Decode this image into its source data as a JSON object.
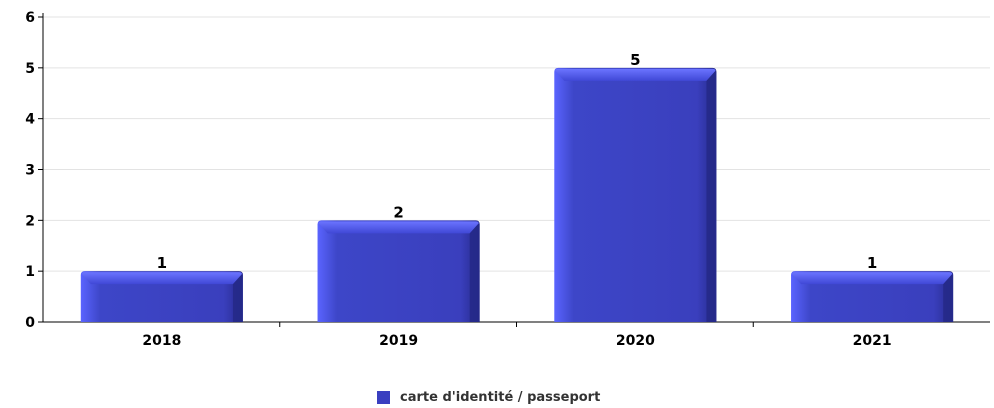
{
  "chart_data": {
    "type": "bar",
    "categories": [
      "2018",
      "2019",
      "2020",
      "2021"
    ],
    "series": [
      {
        "name": "carte d'identité / passeport",
        "values": [
          1,
          2,
          5,
          1
        ],
        "color": "#3a3fc0"
      }
    ],
    "title": "",
    "xlabel": "",
    "ylabel": "",
    "ylim": [
      0,
      6
    ],
    "yticks": [
      "0",
      "1",
      "2",
      "3",
      "4",
      "5",
      "6"
    ],
    "grid": true,
    "legend_position": "bottom-center",
    "data_labels": [
      "1",
      "2",
      "5",
      "1"
    ]
  },
  "legend": {
    "items": [
      {
        "label": "carte d'identité / passeport",
        "color": "#3a3fc0"
      }
    ]
  }
}
